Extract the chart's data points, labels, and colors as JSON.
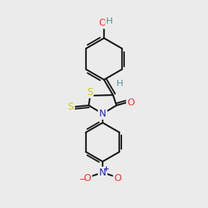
{
  "background_color": "#ebebeb",
  "atom_colors": {
    "H": "#4a9090",
    "O": "#ff3333",
    "S": "#cccc00",
    "N": "#2222cc"
  },
  "figsize": [
    3.0,
    3.0
  ],
  "dpi": 100
}
